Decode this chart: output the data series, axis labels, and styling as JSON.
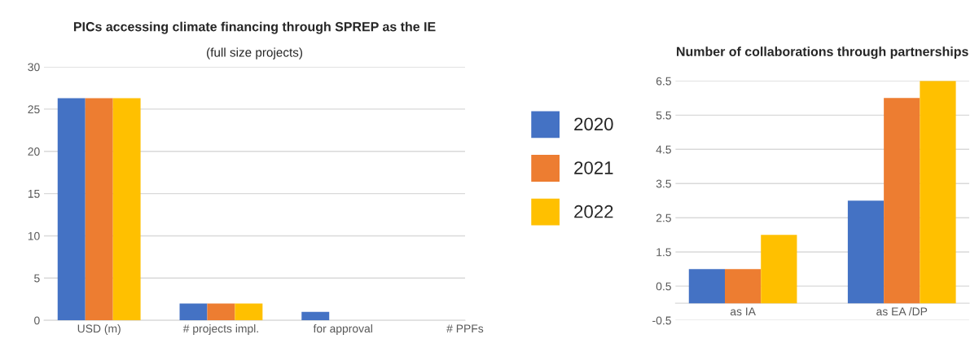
{
  "chart_data": [
    {
      "type": "bar",
      "title": "PICs accessing climate financing through SPREP as the IE",
      "subtitle": "(full size projects)",
      "categories": [
        "USD (m)",
        "# projects impl.",
        "for approval",
        "# PPFs"
      ],
      "series": [
        {
          "name": "2020",
          "color": "#4472c4",
          "values": [
            26.3,
            2,
            1,
            null
          ]
        },
        {
          "name": "2021",
          "color": "#ed7d31",
          "values": [
            26.3,
            2,
            null,
            null
          ]
        },
        {
          "name": "2022",
          "color": "#ffc000",
          "values": [
            26.3,
            2,
            null,
            null
          ]
        }
      ],
      "ylim": [
        0,
        30
      ],
      "yticks": [
        0,
        5,
        10,
        15,
        20,
        25,
        30
      ],
      "grid": "y",
      "legend": "right"
    },
    {
      "type": "bar",
      "title": "Number of collaborations through partnerships",
      "categories": [
        "as IA",
        "as EA /DP"
      ],
      "series": [
        {
          "color": "#4472c4",
          "values": [
            1,
            3
          ]
        },
        {
          "color": "#ed7d31",
          "values": [
            1,
            6
          ]
        },
        {
          "color": "#ffc000",
          "values": [
            2,
            6.5
          ]
        }
      ],
      "ylim": [
        -0.5,
        6.5
      ],
      "yticks": [
        -0.5,
        0.5,
        1.5,
        2.5,
        3.5,
        4.5,
        5.5,
        6.5
      ],
      "grid": "y"
    }
  ]
}
